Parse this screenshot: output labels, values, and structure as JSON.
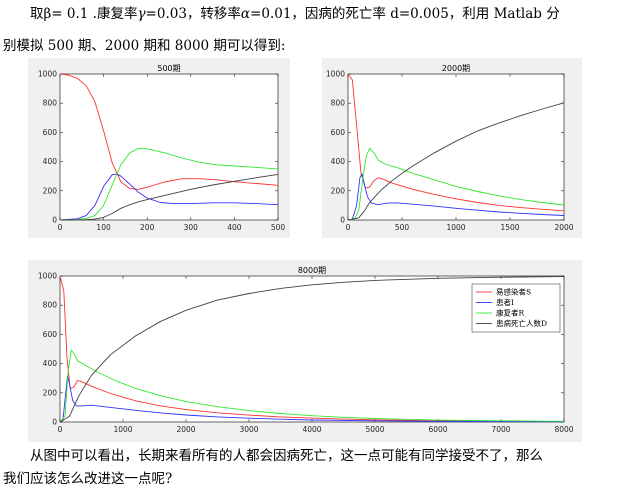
{
  "text": {
    "p1": {
      "a": "取β= 0.1  .康复率",
      "gamma": "γ",
      "b": "=0.03，转移率",
      "alpha": "α",
      "c": "=0.01，因病的死亡率 d=0.005，利用 Matlab 分"
    },
    "p2": "别模拟 500 期、2000 期和 8000 期可以得到:",
    "p3": "从图中可以看出，长期来看所有的人都会因病死亡，这一点可能有同学接受不了，那么",
    "p4": "我们应该怎么改进这一点呢?"
  },
  "colors": {
    "S": "#ff3030",
    "I": "#3030ff",
    "R": "#30e830",
    "D": "#404040"
  },
  "chart_data": [
    {
      "id": "fig-500",
      "type": "line",
      "title": "500期",
      "xlim": [
        0,
        500
      ],
      "ylim": [
        0,
        1000
      ],
      "xticks": [
        0,
        100,
        200,
        300,
        400,
        500
      ],
      "yticks": [
        0,
        200,
        400,
        600,
        800,
        1000
      ],
      "legend": false,
      "series": [
        {
          "key": "S",
          "points": [
            [
              0,
              999
            ],
            [
              20,
              992
            ],
            [
              40,
              970
            ],
            [
              60,
              920
            ],
            [
              80,
              810
            ],
            [
              100,
              610
            ],
            [
              120,
              390
            ],
            [
              140,
              260
            ],
            [
              160,
              215
            ],
            [
              180,
              210
            ],
            [
              200,
              225
            ],
            [
              240,
              260
            ],
            [
              280,
              283
            ],
            [
              320,
              283
            ],
            [
              360,
              275
            ],
            [
              400,
              262
            ],
            [
              450,
              250
            ],
            [
              500,
              238
            ]
          ]
        },
        {
          "key": "I",
          "points": [
            [
              0,
              1
            ],
            [
              40,
              8
            ],
            [
              60,
              30
            ],
            [
              80,
              100
            ],
            [
              100,
              230
            ],
            [
              120,
              310
            ],
            [
              130,
              316
            ],
            [
              140,
              300
            ],
            [
              160,
              245
            ],
            [
              180,
              190
            ],
            [
              200,
              150
            ],
            [
              230,
              120
            ],
            [
              260,
              112
            ],
            [
              300,
              112
            ],
            [
              350,
              118
            ],
            [
              400,
              118
            ],
            [
              450,
              112
            ],
            [
              500,
              105
            ]
          ]
        },
        {
          "key": "R",
          "points": [
            [
              0,
              0
            ],
            [
              40,
              2
            ],
            [
              60,
              10
            ],
            [
              80,
              30
            ],
            [
              100,
              100
            ],
            [
              120,
              240
            ],
            [
              140,
              380
            ],
            [
              160,
              460
            ],
            [
              180,
              490
            ],
            [
              200,
              488
            ],
            [
              240,
              460
            ],
            [
              280,
              425
            ],
            [
              320,
              395
            ],
            [
              360,
              378
            ],
            [
              400,
              370
            ],
            [
              450,
              360
            ],
            [
              500,
              350
            ]
          ]
        },
        {
          "key": "D",
          "points": [
            [
              0,
              0
            ],
            [
              60,
              2
            ],
            [
              80,
              6
            ],
            [
              100,
              18
            ],
            [
              120,
              45
            ],
            [
              140,
              80
            ],
            [
              160,
              105
            ],
            [
              180,
              125
            ],
            [
              200,
              140
            ],
            [
              250,
              175
            ],
            [
              300,
              210
            ],
            [
              350,
              240
            ],
            [
              400,
              265
            ],
            [
              450,
              290
            ],
            [
              500,
              312
            ]
          ]
        }
      ]
    },
    {
      "id": "fig-2000",
      "type": "line",
      "title": "2000期",
      "xlim": [
        0,
        2000
      ],
      "ylim": [
        0,
        1000
      ],
      "xticks": [
        0,
        500,
        1000,
        1500,
        2000
      ],
      "yticks": [
        0,
        200,
        400,
        600,
        800,
        1000
      ],
      "legend": false,
      "series": [
        {
          "key": "S",
          "points": [
            [
              0,
              999
            ],
            [
              40,
              960
            ],
            [
              80,
              650
            ],
            [
              120,
              320
            ],
            [
              160,
              220
            ],
            [
              200,
              225
            ],
            [
              240,
              270
            ],
            [
              280,
              290
            ],
            [
              320,
              280
            ],
            [
              400,
              255
            ],
            [
              600,
              210
            ],
            [
              800,
              175
            ],
            [
              1000,
              145
            ],
            [
              1200,
              120
            ],
            [
              1400,
              100
            ],
            [
              1600,
              85
            ],
            [
              1800,
              73
            ],
            [
              2000,
              63
            ]
          ]
        },
        {
          "key": "I",
          "points": [
            [
              0,
              1
            ],
            [
              40,
              5
            ],
            [
              80,
              100
            ],
            [
              110,
              290
            ],
            [
              130,
              316
            ],
            [
              150,
              250
            ],
            [
              180,
              160
            ],
            [
              220,
              115
            ],
            [
              280,
              105
            ],
            [
              350,
              115
            ],
            [
              450,
              118
            ],
            [
              600,
              108
            ],
            [
              800,
              95
            ],
            [
              1000,
              80
            ],
            [
              1200,
              67
            ],
            [
              1400,
              55
            ],
            [
              1600,
              46
            ],
            [
              1800,
              38
            ],
            [
              2000,
              31
            ]
          ]
        },
        {
          "key": "R",
          "points": [
            [
              0,
              0
            ],
            [
              60,
              5
            ],
            [
              100,
              70
            ],
            [
              140,
              300
            ],
            [
              170,
              440
            ],
            [
              200,
              492
            ],
            [
              240,
              460
            ],
            [
              280,
              410
            ],
            [
              350,
              380
            ],
            [
              450,
              360
            ],
            [
              600,
              320
            ],
            [
              800,
              275
            ],
            [
              1000,
              230
            ],
            [
              1200,
              195
            ],
            [
              1400,
              165
            ],
            [
              1600,
              140
            ],
            [
              1800,
              120
            ],
            [
              2000,
              103
            ]
          ]
        },
        {
          "key": "D",
          "points": [
            [
              0,
              0
            ],
            [
              100,
              15
            ],
            [
              150,
              60
            ],
            [
              200,
              120
            ],
            [
              300,
              200
            ],
            [
              400,
              265
            ],
            [
              500,
              320
            ],
            [
              600,
              370
            ],
            [
              800,
              460
            ],
            [
              1000,
              540
            ],
            [
              1200,
              610
            ],
            [
              1400,
              665
            ],
            [
              1600,
              715
            ],
            [
              1800,
              760
            ],
            [
              2000,
              803
            ]
          ]
        }
      ]
    },
    {
      "id": "fig-8000",
      "type": "line",
      "title": "8000期",
      "xlim": [
        0,
        8000
      ],
      "ylim": [
        0,
        1000
      ],
      "xticks": [
        0,
        1000,
        2000,
        3000,
        4000,
        5000,
        6000,
        7000,
        8000
      ],
      "yticks": [
        0,
        200,
        400,
        600,
        800,
        1000
      ],
      "legend": true,
      "legend_position": "top-right",
      "series": [
        {
          "key": "S",
          "name": "易感染者S",
          "points": [
            [
              0,
              999
            ],
            [
              60,
              900
            ],
            [
              110,
              450
            ],
            [
              160,
              230
            ],
            [
              220,
              240
            ],
            [
              280,
              285
            ],
            [
              350,
              275
            ],
            [
              500,
              245
            ],
            [
              800,
              195
            ],
            [
              1200,
              145
            ],
            [
              1600,
              110
            ],
            [
              2000,
              85
            ],
            [
              2500,
              63
            ],
            [
              3000,
              47
            ],
            [
              3500,
              35
            ],
            [
              4000,
              27
            ],
            [
              4500,
              20
            ],
            [
              5000,
              15
            ],
            [
              6000,
              8
            ],
            [
              7000,
              5
            ],
            [
              8000,
              3
            ]
          ]
        },
        {
          "key": "I",
          "name": "患者I",
          "points": [
            [
              0,
              1
            ],
            [
              50,
              20
            ],
            [
              90,
              200
            ],
            [
              120,
              316
            ],
            [
              150,
              260
            ],
            [
              200,
              150
            ],
            [
              260,
              110
            ],
            [
              350,
              110
            ],
            [
              500,
              115
            ],
            [
              800,
              100
            ],
            [
              1200,
              80
            ],
            [
              1600,
              62
            ],
            [
              2000,
              48
            ],
            [
              2500,
              35
            ],
            [
              3000,
              26
            ],
            [
              3500,
              19
            ],
            [
              4000,
              14
            ],
            [
              5000,
              8
            ],
            [
              6000,
              5
            ],
            [
              7000,
              3
            ],
            [
              8000,
              2
            ]
          ]
        },
        {
          "key": "R",
          "name": "康复者R",
          "points": [
            [
              0,
              0
            ],
            [
              80,
              40
            ],
            [
              130,
              350
            ],
            [
              180,
              492
            ],
            [
              220,
              470
            ],
            [
              280,
              420
            ],
            [
              400,
              390
            ],
            [
              600,
              340
            ],
            [
              900,
              280
            ],
            [
              1200,
              230
            ],
            [
              1600,
              180
            ],
            [
              2000,
              140
            ],
            [
              2500,
              105
            ],
            [
              3000,
              78
            ],
            [
              3500,
              58
            ],
            [
              4000,
              43
            ],
            [
              4500,
              32
            ],
            [
              5000,
              24
            ],
            [
              6000,
              13
            ],
            [
              7000,
              8
            ],
            [
              8000,
              5
            ]
          ]
        },
        {
          "key": "D",
          "name": "患病死亡人数D",
          "points": [
            [
              0,
              0
            ],
            [
              150,
              40
            ],
            [
              300,
              180
            ],
            [
              500,
              320
            ],
            [
              800,
              460
            ],
            [
              1200,
              590
            ],
            [
              1600,
              690
            ],
            [
              2000,
              765
            ],
            [
              2500,
              835
            ],
            [
              3000,
              880
            ],
            [
              3500,
              915
            ],
            [
              4000,
              940
            ],
            [
              4500,
              957
            ],
            [
              5000,
              970
            ],
            [
              6000,
              984
            ],
            [
              7000,
              992
            ],
            [
              8000,
              996
            ]
          ]
        }
      ]
    }
  ]
}
